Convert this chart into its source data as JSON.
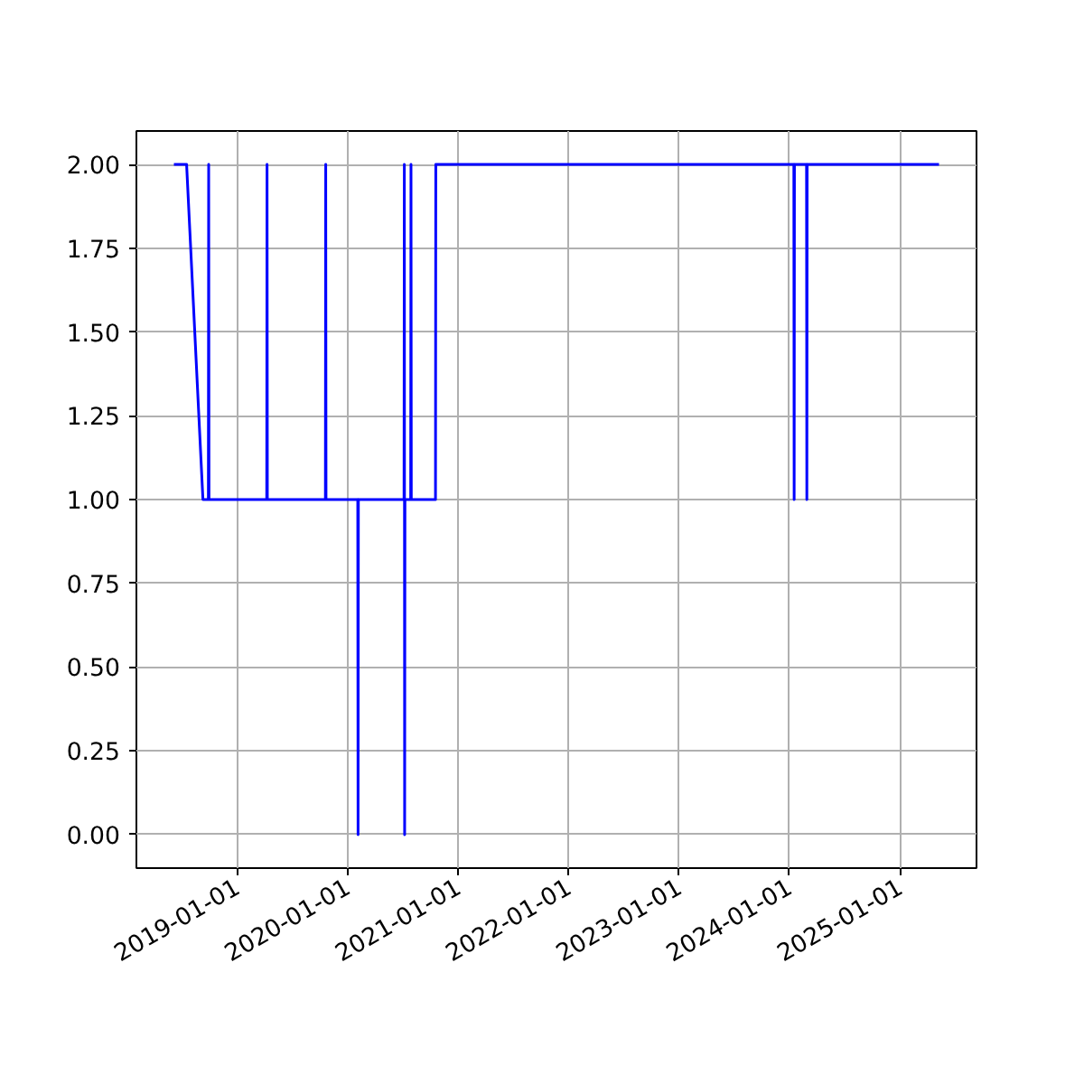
{
  "chart_data": {
    "type": "line",
    "x": [
      "2018-06-06",
      "2018-07-18",
      "2018-09-10",
      "2018-09-28",
      "2018-09-29",
      "2018-09-30",
      "2019-04-09",
      "2019-04-10",
      "2019-04-11",
      "2019-10-20",
      "2019-10-21",
      "2019-10-22",
      "2020-02-04",
      "2020-02-05",
      "2020-02-06",
      "2020-07-06",
      "2020-07-07",
      "2020-07-08",
      "2020-07-09",
      "2020-07-28",
      "2020-07-29",
      "2020-07-30",
      "2020-10-18",
      "2020-10-19",
      "2024-01-16",
      "2024-01-17",
      "2024-01-18",
      "2024-02-27",
      "2024-02-28",
      "2024-02-29",
      "2025-05-10"
    ],
    "series": [
      {
        "color": "#0000ff",
        "values": [
          2,
          2,
          1,
          1,
          2,
          1,
          1,
          2,
          1,
          1,
          2,
          1,
          1,
          0,
          1,
          1,
          2,
          0,
          1,
          1,
          2,
          1,
          1,
          2,
          2,
          1,
          2,
          2,
          1,
          2,
          2
        ]
      }
    ],
    "xlim": [
      "2018-02-02",
      "2025-09-11"
    ],
    "xticks": [
      {
        "value": "2019-01-01",
        "label": "2019-01-01"
      },
      {
        "value": "2020-01-01",
        "label": "2020-01-01"
      },
      {
        "value": "2021-01-01",
        "label": "2021-01-01"
      },
      {
        "value": "2022-01-01",
        "label": "2022-01-01"
      },
      {
        "value": "2023-01-01",
        "label": "2023-01-01"
      },
      {
        "value": "2024-01-01",
        "label": "2024-01-01"
      },
      {
        "value": "2025-01-01",
        "label": "2025-01-01"
      }
    ],
    "ylim": [
      -0.1,
      2.1
    ],
    "yticks": [
      {
        "value": 0,
        "label": "0.00"
      },
      {
        "value": 0.25,
        "label": "0.25"
      },
      {
        "value": 0.5,
        "label": "0.50"
      },
      {
        "value": 0.75,
        "label": "0.75"
      },
      {
        "value": 1,
        "label": "1.00"
      },
      {
        "value": 1.25,
        "label": "1.25"
      },
      {
        "value": 1.5,
        "label": "1.50"
      },
      {
        "value": 1.75,
        "label": "1.75"
      },
      {
        "value": 2,
        "label": "2.00"
      }
    ],
    "grid": true,
    "line_style": "solid"
  }
}
